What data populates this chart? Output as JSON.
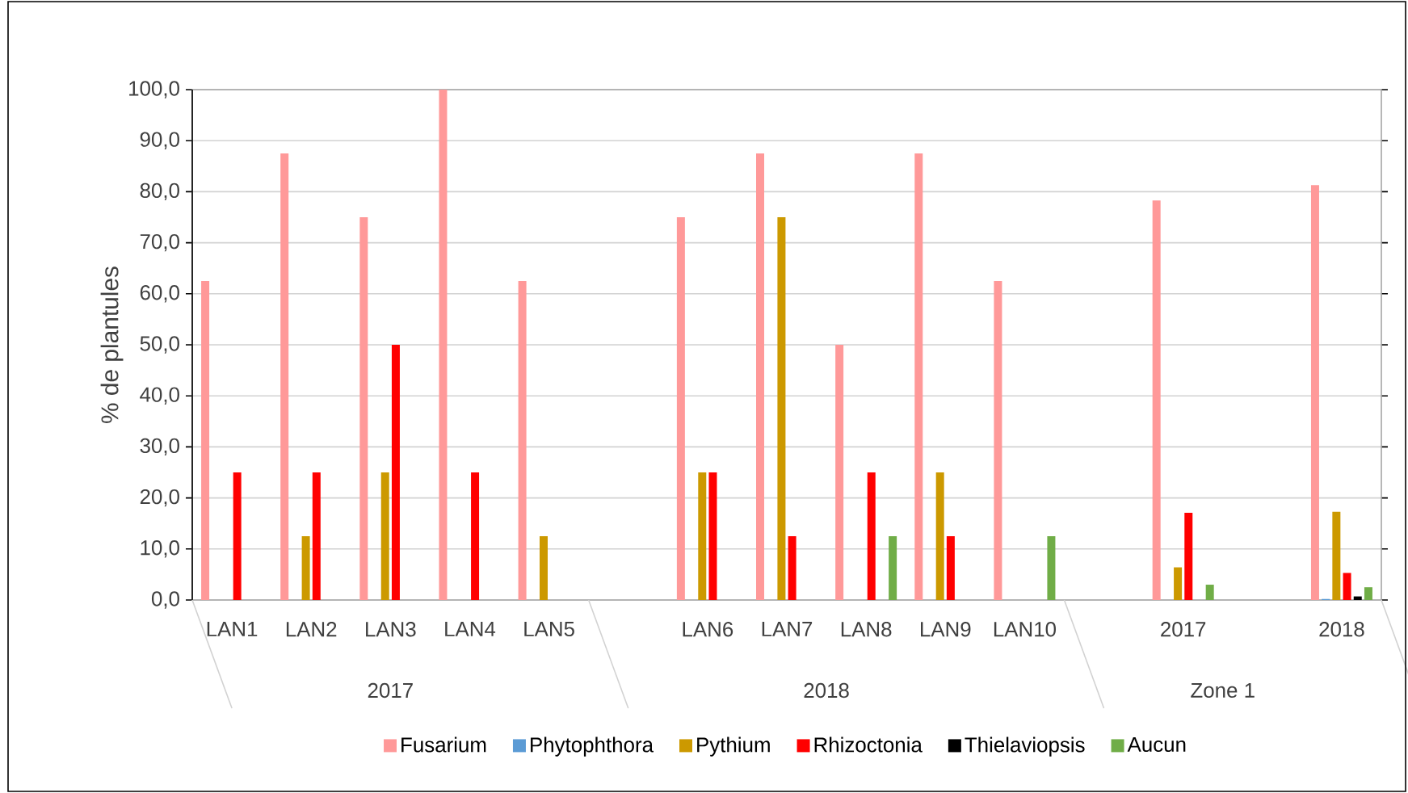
{
  "chart_data": {
    "type": "bar",
    "ylabel": "% de plantules",
    "categories": [
      "LAN1",
      "LAN2",
      "LAN3",
      "LAN4",
      "LAN5",
      null,
      "LAN6",
      "LAN7",
      "LAN8",
      "LAN9",
      "LAN10",
      null,
      "2017",
      null,
      "2018"
    ],
    "series": [
      {
        "name": "Fusarium",
        "color": "#ff9999",
        "values": [
          62.5,
          87.5,
          75,
          100,
          62.5,
          null,
          75,
          87.5,
          50,
          87.5,
          62.5,
          null,
          78.3,
          null,
          81.3
        ]
      },
      {
        "name": "Phytophthora",
        "color": "#5b9bd5",
        "values": [
          null,
          null,
          null,
          null,
          null,
          null,
          null,
          null,
          null,
          null,
          null,
          null,
          null,
          null,
          0.2
        ]
      },
      {
        "name": "Pythium",
        "color": "#cc9900",
        "values": [
          null,
          12.5,
          25,
          null,
          12.5,
          null,
          25,
          75,
          null,
          25,
          null,
          null,
          6.4,
          null,
          17.3
        ]
      },
      {
        "name": "Rhizoctonia",
        "color": "#ff0000",
        "values": [
          25,
          25,
          50,
          25,
          null,
          null,
          25,
          12.5,
          25,
          12.5,
          null,
          null,
          17.1,
          null,
          5.3
        ]
      },
      {
        "name": "Thielaviopsis",
        "color": "#000000",
        "values": [
          null,
          null,
          null,
          null,
          null,
          null,
          null,
          null,
          null,
          null,
          null,
          null,
          null,
          null,
          0.7
        ]
      },
      {
        "name": "Aucun",
        "color": "#70ad47",
        "values": [
          null,
          null,
          null,
          null,
          null,
          null,
          null,
          null,
          12.5,
          null,
          12.5,
          null,
          3.0,
          null,
          2.5
        ]
      }
    ],
    "ylim": [
      0,
      100
    ],
    "yticks": [
      {
        "value": 0,
        "label": "0,0"
      },
      {
        "value": 10,
        "label": "10,0"
      },
      {
        "value": 20,
        "label": "20,0"
      },
      {
        "value": 30,
        "label": "30,0"
      },
      {
        "value": 40,
        "label": "40,0"
      },
      {
        "value": 50,
        "label": "50,0"
      },
      {
        "value": 60,
        "label": "60,0"
      },
      {
        "value": 70,
        "label": "70,0"
      },
      {
        "value": 80,
        "label": "80,0"
      },
      {
        "value": 90,
        "label": "90,0"
      },
      {
        "value": 100,
        "label": "100,0"
      }
    ],
    "annotations": [
      "2017",
      "2018",
      "Zone 1"
    ],
    "grid": "y",
    "legend": "bottom"
  }
}
